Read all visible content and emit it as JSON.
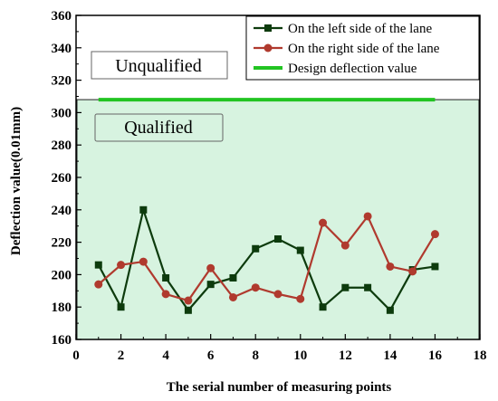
{
  "chart_data": {
    "type": "line",
    "xlabel": "The serial number of measuring points",
    "ylabel": "Deflection value(0.01mm)",
    "xlim": [
      0,
      18
    ],
    "ylim": [
      160,
      360
    ],
    "x_ticks": [
      "0",
      "2",
      "4",
      "6",
      "8",
      "10",
      "12",
      "14",
      "16",
      "18"
    ],
    "y_ticks": [
      "160",
      "180",
      "200",
      "220",
      "240",
      "260",
      "280",
      "300",
      "320",
      "340",
      "360"
    ],
    "x": [
      1,
      2,
      3,
      4,
      5,
      6,
      7,
      8,
      9,
      10,
      11,
      12,
      13,
      14,
      15,
      16
    ],
    "series": [
      {
        "name": "On the left side of the lane",
        "color": "#0d3b0d",
        "marker": "square",
        "values": [
          206,
          180,
          240,
          198,
          178,
          194,
          198,
          216,
          222,
          215,
          180,
          192,
          192,
          178,
          203,
          205
        ]
      },
      {
        "name": "On the right side of the lane",
        "color": "#b03a2e",
        "marker": "circle",
        "values": [
          194,
          206,
          208,
          188,
          184,
          204,
          186,
          192,
          188,
          185,
          232,
          218,
          236,
          205,
          202,
          225
        ]
      }
    ],
    "reference_line": {
      "name": "Design deflection value",
      "color": "#22c422",
      "value": 308,
      "x_range": [
        1,
        16
      ]
    },
    "regions": {
      "qualified_label": "Qualified",
      "unqualified_label": "Unqualified",
      "qualified_fill": "#d7f3e0"
    },
    "legend_position": "top-right",
    "grid": false
  }
}
